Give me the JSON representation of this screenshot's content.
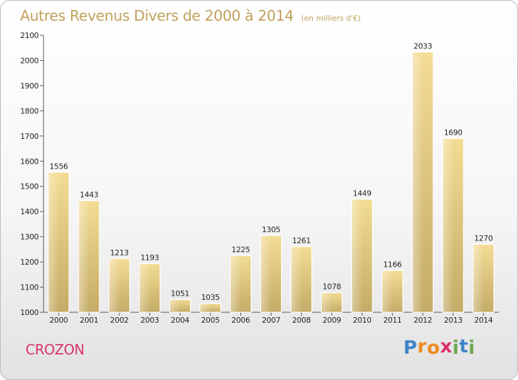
{
  "chart_data": {
    "type": "bar",
    "title": "Autres Revenus Divers de 2000 à 2014",
    "subtitle": "(en milliers d'€)",
    "categories": [
      "2000",
      "2001",
      "2002",
      "2003",
      "2004",
      "2005",
      "2006",
      "2007",
      "2008",
      "2009",
      "2010",
      "2011",
      "2012",
      "2013",
      "2014"
    ],
    "values": [
      1556,
      1443,
      1213,
      1193,
      1051,
      1035,
      1225,
      1305,
      1261,
      1078,
      1449,
      1166,
      2033,
      1690,
      1270
    ],
    "data_labels": [
      "1556",
      "1443",
      "1213",
      "1193",
      "1051",
      "1035",
      "1225",
      "1305",
      "1261",
      "1078",
      "1449",
      "1166",
      "2033",
      "1690",
      "1270"
    ],
    "yticks": [
      "1000",
      "1100",
      "1200",
      "1300",
      "1400",
      "1500",
      "1600",
      "1700",
      "1800",
      "1900",
      "2000",
      "2100"
    ],
    "ylim": [
      1000,
      2100
    ],
    "grid": false,
    "legend": "none"
  },
  "location": "CROZON",
  "logo": {
    "letters": [
      "P",
      "r",
      "o",
      "x",
      "i",
      "t",
      "i"
    ]
  },
  "colors": {
    "title": "#c0a05c",
    "bar_light": "#f3dc94",
    "bar_dark": "#c4ab66",
    "location": "#d9336a",
    "logo_letters": [
      "#3f86c8",
      "#f08a1e",
      "#f08a1e",
      "#d9336a",
      "#6aa84f",
      "#3f86c8",
      "#6aa84f"
    ]
  }
}
